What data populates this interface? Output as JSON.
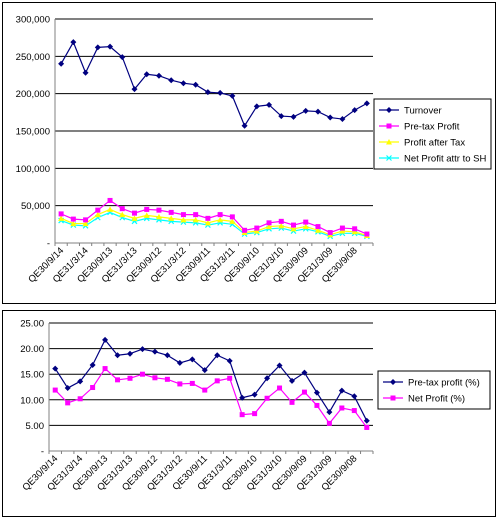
{
  "chart_data": [
    {
      "type": "line",
      "title": "",
      "xlabel": "",
      "ylabel": "",
      "ylim": [
        0,
        300000
      ],
      "yticks": [
        "-",
        "50,000",
        "100,000",
        "150,000",
        "200,000",
        "250,000",
        "300,000"
      ],
      "grid": true,
      "legend_position": "right",
      "x_tick_labels": [
        "QE30/9/14",
        "QE31/3/14",
        "QE30/9/13",
        "QE31/3/13",
        "QE30/9/12",
        "QE31/3/12",
        "QE30/9/11",
        "QE31/3/11",
        "QE30/9/10",
        "QE31/3/10",
        "QE30/9/09",
        "QE31/3/09",
        "QE30/9/08"
      ],
      "series": [
        {
          "name": "Turnover",
          "color": "#000080",
          "marker": "diamond",
          "values": [
            240000,
            269000,
            228000,
            262000,
            263000,
            249000,
            206000,
            226000,
            224000,
            218000,
            214000,
            212000,
            202000,
            201000,
            197000,
            157000,
            183000,
            185000,
            170000,
            169000,
            177000,
            176000,
            168000,
            166000,
            178000,
            187000
          ]
        },
        {
          "name": "Pre-tax Profit",
          "color": "#ff00ff",
          "marker": "square",
          "values": [
            39000,
            32000,
            31000,
            44000,
            57000,
            46000,
            40000,
            45000,
            44000,
            41000,
            38000,
            38000,
            33000,
            38000,
            35000,
            17000,
            20000,
            27000,
            29000,
            24000,
            28000,
            22000,
            14000,
            20000,
            19000,
            12000
          ]
        },
        {
          "name": "Profit after Tax",
          "color": "#ffff00",
          "marker": "triangle",
          "values": [
            33000,
            26000,
            26000,
            38000,
            45000,
            38000,
            33000,
            37000,
            35000,
            33000,
            31000,
            31000,
            27000,
            31000,
            29000,
            14000,
            16000,
            22000,
            23000,
            19000,
            22000,
            17000,
            11000,
            16000,
            15000,
            10000
          ]
        },
        {
          "name": "Net Profit attr to SH",
          "color": "#00ffff",
          "marker": "x",
          "values": [
            30000,
            24000,
            23000,
            34000,
            41000,
            34000,
            29000,
            33000,
            31000,
            29000,
            28000,
            27000,
            24000,
            27000,
            25000,
            12000,
            14000,
            19000,
            20000,
            16000,
            19000,
            15000,
            9000,
            13000,
            13000,
            9000
          ]
        }
      ]
    },
    {
      "type": "line",
      "title": "",
      "xlabel": "",
      "ylabel": "",
      "ylim": [
        0,
        25
      ],
      "yticks": [
        "-",
        "5.00",
        "10.00",
        "15.00",
        "20.00",
        "25.00"
      ],
      "grid": true,
      "legend_position": "right",
      "x_tick_labels": [
        "QE30/9/14",
        "QE31/3/14",
        "QE30/9/13",
        "QE31/3/13",
        "QE30/9/12",
        "QE31/3/12",
        "QE30/9/11",
        "QE31/3/11",
        "QE30/9/10",
        "QE31/3/10",
        "QE30/9/09",
        "QE31/3/09",
        "QE30/9/08"
      ],
      "series": [
        {
          "name": "Pre-tax profit (%)",
          "color": "#000080",
          "marker": "diamond",
          "values": [
            16.1,
            12.3,
            13.6,
            16.8,
            21.7,
            18.7,
            19.0,
            19.9,
            19.4,
            18.7,
            17.2,
            17.9,
            15.8,
            18.7,
            17.6,
            10.4,
            11.0,
            14.2,
            16.7,
            13.7,
            15.3,
            11.4,
            7.6,
            11.8,
            10.7,
            5.9
          ]
        },
        {
          "name": "Net Profit (%)",
          "color": "#ff00ff",
          "marker": "square",
          "values": [
            11.9,
            9.4,
            10.2,
            12.4,
            16.1,
            13.9,
            14.2,
            15.0,
            14.3,
            14.0,
            13.1,
            13.2,
            11.9,
            13.7,
            14.2,
            7.1,
            7.3,
            10.3,
            12.3,
            9.5,
            11.5,
            8.9,
            5.4,
            8.4,
            7.9,
            4.6
          ]
        }
      ]
    }
  ]
}
